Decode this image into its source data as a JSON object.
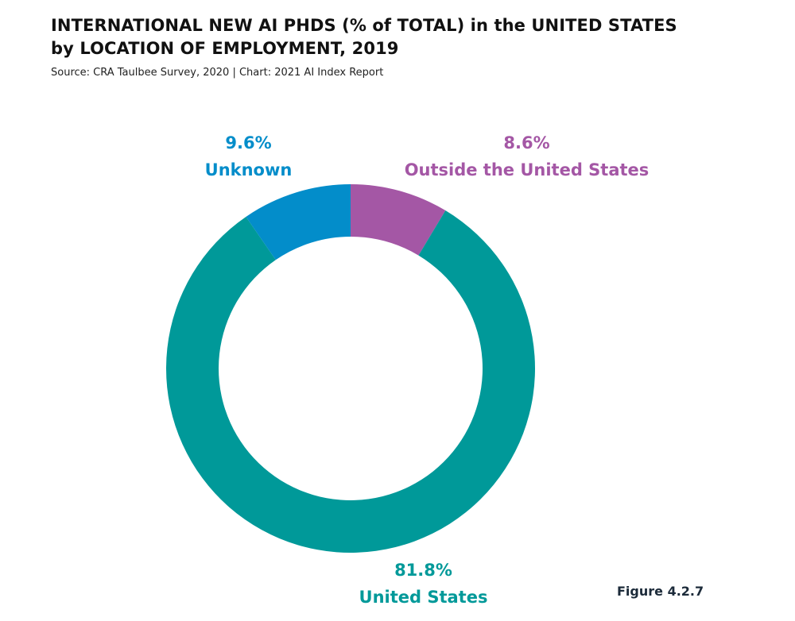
{
  "title_line1": "INTERNATIONAL NEW AI PHDS (% of TOTAL) in the UNITED STATES",
  "title_line2": "by LOCATION OF EMPLOYMENT, 2019",
  "source": "Source: CRA Taulbee Survey, 2020 | Chart: 2021 AI Index Report",
  "figure_label": "Figure 4.2.7",
  "chart_data": {
    "type": "pie",
    "donut": true,
    "title": "INTERNATIONAL NEW AI PHDS (% of TOTAL) in the UNITED STATES by LOCATION OF EMPLOYMENT, 2019",
    "slices": [
      {
        "label": "Outside the United States",
        "value": 8.6,
        "value_label": "8.6%",
        "color": "#a457a5"
      },
      {
        "label": "United States",
        "value": 81.8,
        "value_label": "81.8%",
        "color": "#009999"
      },
      {
        "label": "Unknown",
        "value": 9.6,
        "value_label": "9.6%",
        "color": "#038dca"
      }
    ]
  }
}
